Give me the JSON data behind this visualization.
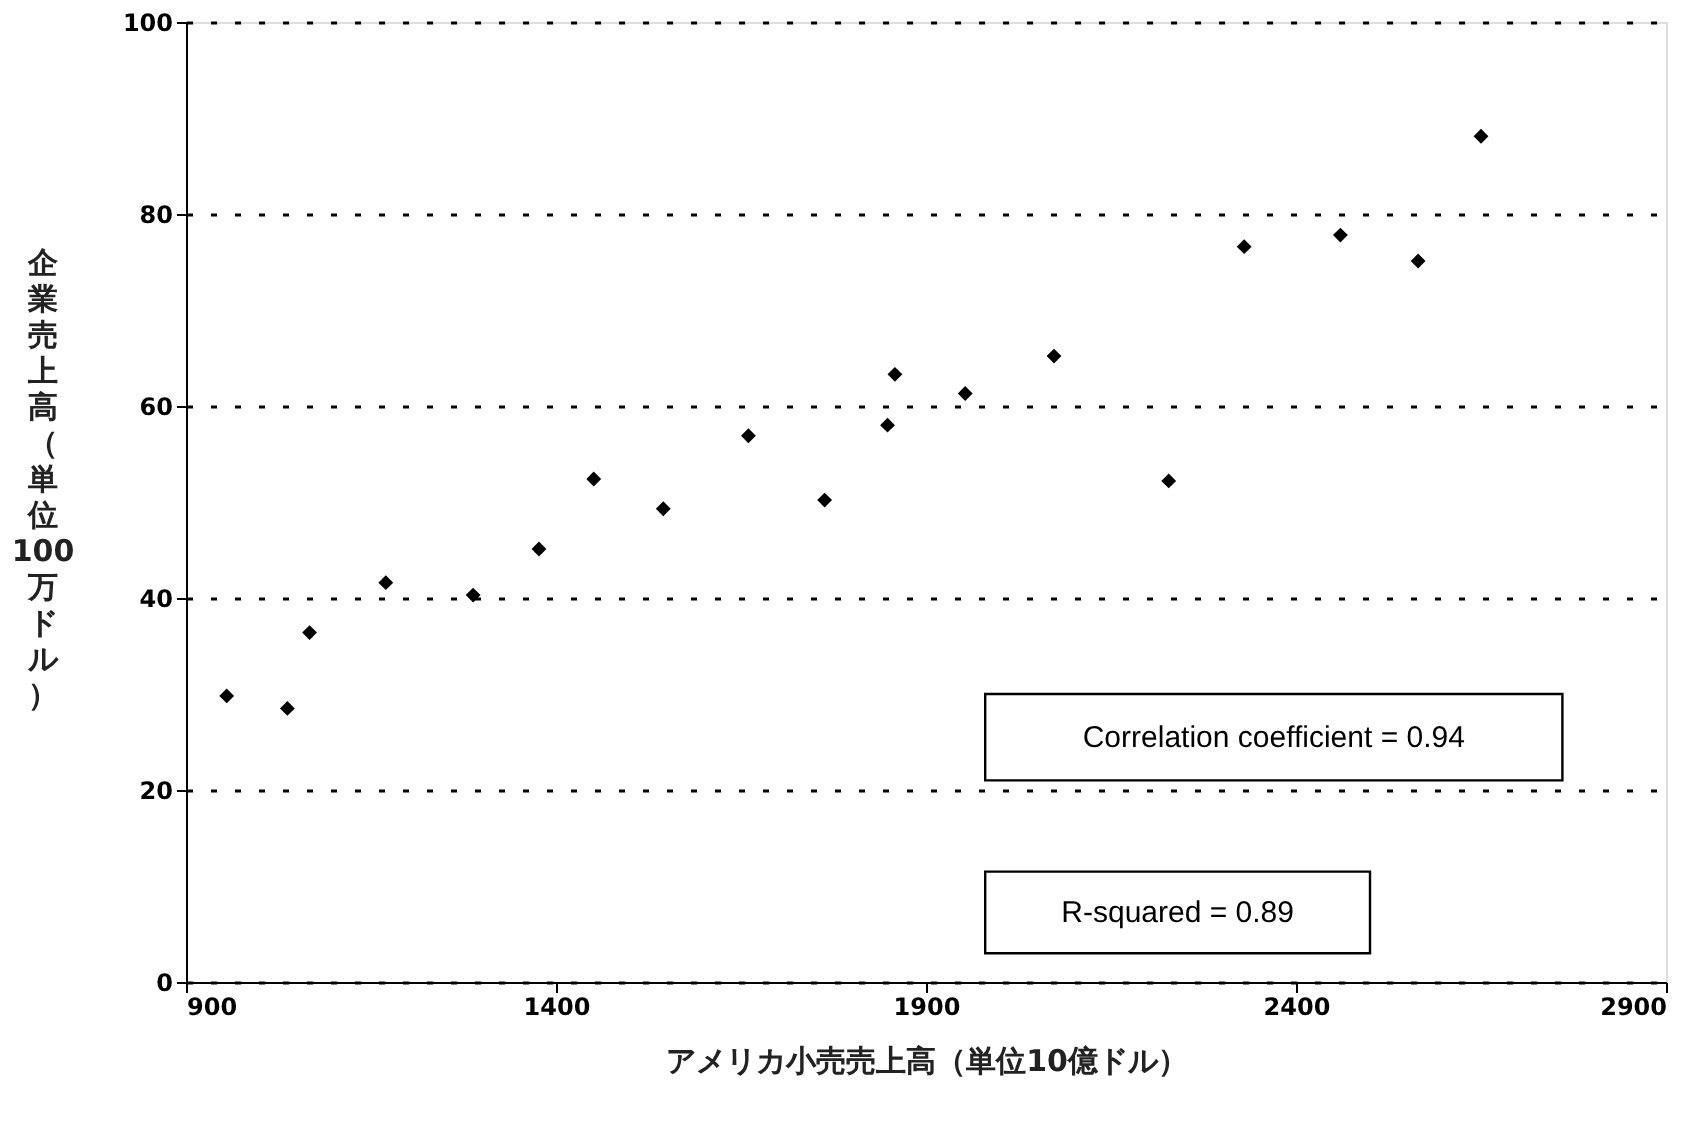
{
  "chart_data": {
    "type": "scatter",
    "xlabel": "アメリカ小売売上高（単位10億ドル）",
    "ylabel": "企業売上高（単位100万ドル）",
    "x": [
      955,
      1037,
      1067,
      1170,
      1288,
      1377,
      1451,
      1545,
      1660,
      1763,
      1848,
      1858,
      1953,
      2073,
      2228,
      2330,
      2460,
      2565,
      2650
    ],
    "series": [
      {
        "color": "#000000",
        "values": [
          29.8,
          28.5,
          36.4,
          41.6,
          40.3,
          45.1,
          52.4,
          49.3,
          56.9,
          50.2,
          58.0,
          63.3,
          61.3,
          65.2,
          52.2,
          76.6,
          77.8,
          75.1,
          88.1
        ]
      }
    ],
    "xlim": [
      900,
      2900
    ],
    "xticks": [
      900,
      1400,
      1900,
      2400,
      2900
    ],
    "ylim": [
      0,
      100
    ],
    "yticks": [
      0,
      20,
      40,
      60,
      80,
      100
    ],
    "grid": "y",
    "marker": "diamond",
    "annotations": [
      "Correlation coefficient = 0.94",
      "R-squared = 0.89"
    ]
  }
}
